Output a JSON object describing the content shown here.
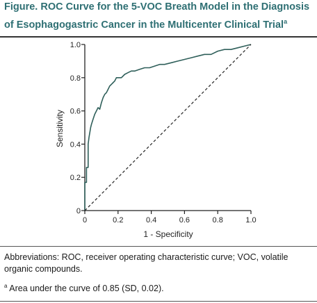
{
  "figure": {
    "title_line1": "Figure. ROC Curve for the 5-VOC Breath Model in the Diagnosis",
    "title_line2": "of Esophagogastric Cancer in the Multicenter Clinical Trial",
    "title_sup": "a"
  },
  "notes": {
    "abbreviations": "Abbreviations: ROC, receiver operating characteristic curve; VOC, volatile organic compounds.",
    "footnote_marker": "a",
    "footnote": "Area under the curve of 0.85 (SD, 0.02)."
  },
  "colors": {
    "title": "#2e6f73",
    "curve": "#2f5f5a",
    "reference": "#222222",
    "axis": "#222222"
  },
  "chart_data": {
    "type": "line",
    "xlabel": "1 - Specificity",
    "ylabel": "Sensitivity",
    "xlim": [
      0,
      1.0
    ],
    "ylim": [
      0,
      1.0
    ],
    "x_ticks": [
      "0",
      "0.2",
      "0.4",
      "0.6",
      "0.8",
      "1.0"
    ],
    "y_ticks": [
      "0",
      "0.2",
      "0.4",
      "0.6",
      "0.8",
      "1.0"
    ],
    "grid": false,
    "legend": false,
    "series": [
      {
        "style": "solid",
        "x": [
          0,
          0,
          0.01,
          0.01,
          0.02,
          0.02,
          0.025,
          0.03,
          0.035,
          0.04,
          0.05,
          0.06,
          0.07,
          0.08,
          0.09,
          0.1,
          0.11,
          0.12,
          0.13,
          0.14,
          0.15,
          0.16,
          0.17,
          0.18,
          0.19,
          0.2,
          0.22,
          0.24,
          0.26,
          0.28,
          0.3,
          0.33,
          0.36,
          0.39,
          0.42,
          0.45,
          0.48,
          0.52,
          0.56,
          0.6,
          0.64,
          0.68,
          0.72,
          0.76,
          0.8,
          0.84,
          0.88,
          0.92,
          0.96,
          1.0
        ],
        "y": [
          0,
          0.17,
          0.17,
          0.26,
          0.26,
          0.4,
          0.44,
          0.47,
          0.5,
          0.52,
          0.55,
          0.58,
          0.6,
          0.62,
          0.61,
          0.65,
          0.68,
          0.7,
          0.71,
          0.73,
          0.75,
          0.76,
          0.77,
          0.78,
          0.8,
          0.8,
          0.8,
          0.82,
          0.83,
          0.84,
          0.84,
          0.85,
          0.86,
          0.86,
          0.87,
          0.88,
          0.88,
          0.89,
          0.9,
          0.91,
          0.92,
          0.93,
          0.94,
          0.94,
          0.96,
          0.97,
          0.97,
          0.98,
          0.99,
          1.0
        ]
      },
      {
        "style": "dashed",
        "x": [
          0,
          1.0
        ],
        "y": [
          0,
          1.0
        ]
      }
    ]
  }
}
